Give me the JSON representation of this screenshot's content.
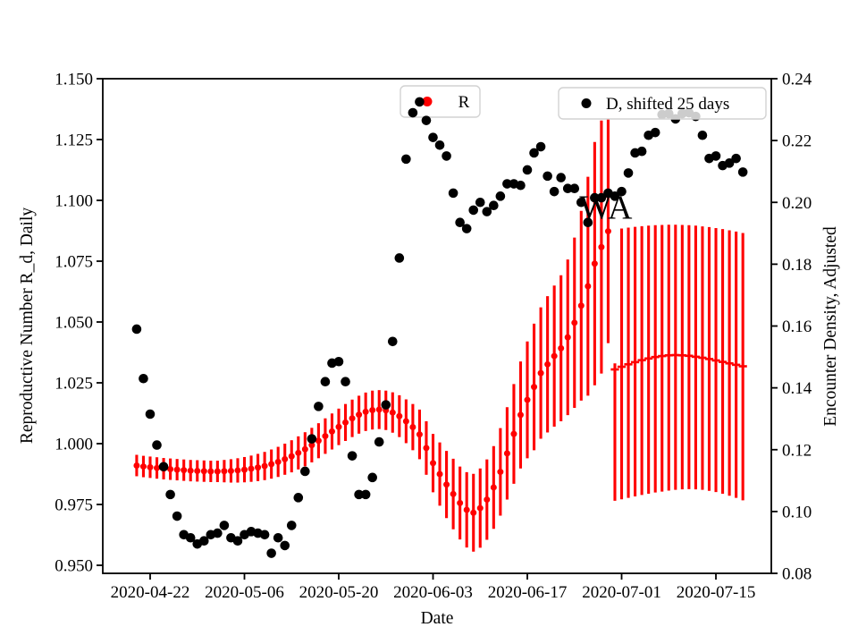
{
  "background": "#ffffff",
  "accent_red": "#ff0000",
  "accent_black": "#000000",
  "legend_frame": {
    "border_color": "#d2d2d2",
    "fill": "#ffffff",
    "fill_opacity": 0.8
  },
  "legends": [
    {
      "label": "R",
      "marker_color": "#ff0000"
    },
    {
      "label": "D, shifted 25 days",
      "marker_color": "#000000"
    }
  ],
  "chart_data": {
    "type": "scatter",
    "title": "",
    "xlabel": "Date",
    "x_axis": {
      "label": "Date",
      "tick_dates": [
        "2020-04-22",
        "2020-05-06",
        "2020-05-20",
        "2020-06-03",
        "2020-06-17",
        "2020-07-01",
        "2020-07-15"
      ],
      "range": [
        "2020-04-15",
        "2020-07-23"
      ],
      "grid": false
    },
    "y_left": {
      "label": "Reproductive Number R_d, Daily",
      "color": "#ff0000",
      "tick_labels": [
        "1.150",
        "1.125",
        "1.100",
        "1.075",
        "1.050",
        "1.025",
        "1.000",
        "0.975",
        "0.950"
      ],
      "range": [
        0.9467,
        1.15
      ]
    },
    "y_right": {
      "label": "Encounter Density, Adjusted",
      "color": "#000000",
      "tick_labels": [
        "0.24",
        "0.22",
        "0.20",
        "0.18",
        "0.16",
        "0.14",
        "0.12",
        "0.10",
        "0.08"
      ],
      "range": [
        0.08,
        0.24
      ]
    },
    "series": [
      {
        "name": "R",
        "axis": "left",
        "color": "#ff0000",
        "marker": "circle",
        "start_date": "2020-04-20",
        "values": [
          0.991,
          0.9906,
          0.9903,
          0.99,
          0.9897,
          0.9895,
          0.9893,
          0.9891,
          0.9889,
          0.9888,
          0.9887,
          0.9886,
          0.9886,
          0.9887,
          0.9888,
          0.989,
          0.9893,
          0.9897,
          0.9902,
          0.9908,
          0.9916,
          0.9925,
          0.9936,
          0.9948,
          0.9962,
          0.9977,
          0.9994,
          1.0012,
          1.0031,
          1.005,
          1.0069,
          1.0087,
          1.0104,
          1.0119,
          1.0131,
          1.0138,
          1.014,
          1.0137,
          1.0128,
          1.0113,
          1.0092,
          1.0068,
          1.0038,
          0.9982,
          0.992,
          0.9875,
          0.9832,
          0.9793,
          0.9756,
          0.9728,
          0.9716,
          0.9735,
          0.977,
          0.982,
          0.9884,
          0.996,
          1.004,
          1.0118,
          1.018,
          1.0233,
          1.029,
          1.0326,
          1.036,
          1.0392,
          1.0437,
          1.0497,
          1.0567,
          1.0647,
          1.074,
          1.0808,
          1.0873
        ],
        "err": [
          0.0044,
          0.0044,
          0.0044,
          0.0044,
          0.0044,
          0.0044,
          0.0044,
          0.0044,
          0.0044,
          0.0044,
          0.0044,
          0.0044,
          0.0044,
          0.0046,
          0.0048,
          0.005,
          0.0052,
          0.0054,
          0.0056,
          0.0058,
          0.006,
          0.0062,
          0.0064,
          0.0066,
          0.0068,
          0.007,
          0.0071,
          0.0072,
          0.0073,
          0.0074,
          0.0075,
          0.0076,
          0.0077,
          0.0078,
          0.0079,
          0.008,
          0.008,
          0.0081,
          0.0083,
          0.0086,
          0.009,
          0.0095,
          0.0102,
          0.011,
          0.012,
          0.013,
          0.0138,
          0.0145,
          0.015,
          0.0155,
          0.016,
          0.0163,
          0.0165,
          0.017,
          0.018,
          0.019,
          0.0205,
          0.022,
          0.024,
          0.026,
          0.027,
          0.028,
          0.029,
          0.03,
          0.032,
          0.035,
          0.039,
          0.045,
          0.05,
          0.052,
          0.046
        ]
      },
      {
        "name": "R forecast",
        "axis": "left",
        "color": "#ff0000",
        "marker": "hline",
        "start_date": "2020-06-30",
        "values": [
          1.0305,
          1.0316,
          1.0326,
          1.0335,
          1.0343,
          1.035,
          1.0356,
          1.036,
          1.0363,
          1.0364,
          1.0363,
          1.0361,
          1.0357,
          1.0353,
          1.0348,
          1.0342,
          1.0336,
          1.033,
          1.0324,
          1.0318
        ],
        "hi": [
          1.033,
          1.0884,
          1.0888,
          1.0891,
          1.0894,
          1.0896,
          1.0898,
          1.0899,
          1.09,
          1.09,
          1.0899,
          1.0898,
          1.0896,
          1.0893,
          1.089,
          1.0886,
          1.0882,
          1.0877,
          1.0872,
          1.0866
        ],
        "lo": [
          0.9765,
          0.9771,
          0.9777,
          0.9783,
          0.9789,
          0.9794,
          0.9799,
          0.9803,
          0.9807,
          0.981,
          0.9812,
          0.9813,
          0.9812,
          0.981,
          0.9806,
          0.9801,
          0.9794,
          0.9786,
          0.9777,
          0.9767
        ]
      },
      {
        "name": "D, shifted 25 days",
        "axis": "right",
        "color": "#000000",
        "marker": "circle",
        "start_date": "2020-04-20",
        "values": [
          0.159,
          0.143,
          0.1315,
          0.1215,
          0.1145,
          0.1055,
          0.0985,
          0.0925,
          0.0915,
          0.0895,
          0.0905,
          0.0925,
          0.093,
          0.0955,
          0.0915,
          0.0905,
          0.0925,
          0.0935,
          0.093,
          0.0925,
          0.0865,
          0.0915,
          0.089,
          0.0955,
          0.1045,
          0.113,
          0.1235,
          0.134,
          0.142,
          0.148,
          0.1485,
          0.142,
          0.118,
          0.1055,
          0.1055,
          0.111,
          0.1225,
          0.1345,
          0.155,
          0.182,
          0.214,
          0.229,
          0.2325,
          0.2265,
          0.221,
          0.2185,
          0.215,
          0.203,
          0.1935,
          0.1915,
          0.1975,
          0.2,
          0.197,
          0.199,
          0.202,
          0.206,
          0.206,
          0.2055,
          0.2105,
          0.216,
          0.218,
          0.2085,
          0.2035,
          0.208,
          0.2045,
          0.2045,
          0.2,
          0.1935,
          0.2015,
          0.2015,
          0.203,
          0.202,
          0.2035,
          0.2095,
          0.216,
          0.2165,
          0.2217,
          0.2226,
          0.2284,
          0.2287,
          0.227,
          0.2287,
          0.229,
          0.2278,
          0.2217,
          0.2142,
          0.215,
          0.2119,
          0.2127,
          0.2142,
          0.2098
        ]
      }
    ],
    "annotations": [
      {
        "text": "WA",
        "date": "2020-06-25",
        "value": 1.0925
      }
    ]
  }
}
